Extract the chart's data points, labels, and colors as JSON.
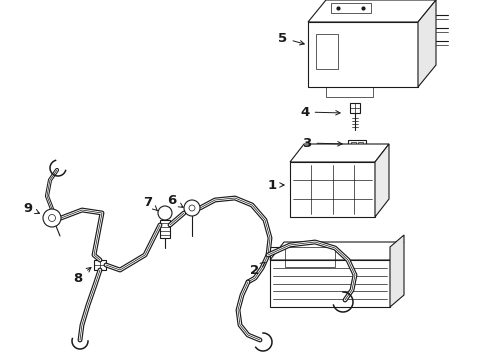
{
  "bg_color": "#ffffff",
  "line_color": "#1a1a1a",
  "lw": 0.8,
  "tlw": 0.5,
  "fig_width": 4.89,
  "fig_height": 3.6,
  "dpi": 100
}
